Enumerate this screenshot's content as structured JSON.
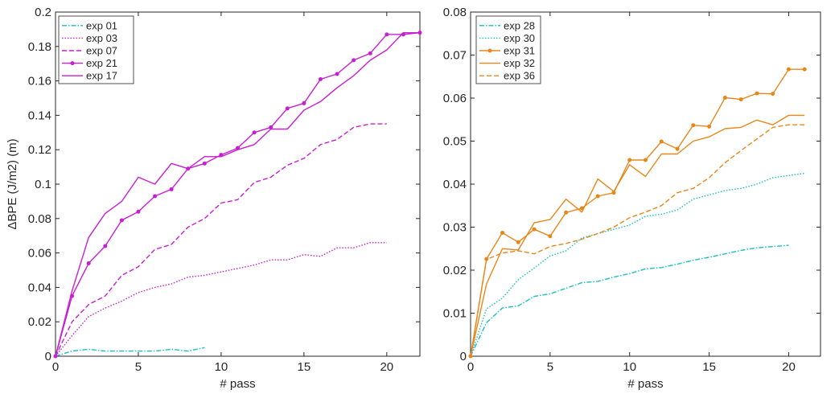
{
  "chart_data": [
    {
      "type": "line",
      "xlabel": "# pass",
      "ylabel": "ΔBPE (J/m2) (m)",
      "xlim": [
        0,
        22
      ],
      "ylim": [
        0,
        0.2
      ],
      "xticks": [
        "0",
        "5",
        "10",
        "15",
        "20"
      ],
      "yticks": [
        "0",
        "0.02",
        "0.04",
        "0.06",
        "0.08",
        "0.1",
        "0.12",
        "0.14",
        "0.16",
        "0.18",
        "0.2"
      ],
      "grid": false,
      "legend_position": "top-left",
      "series": [
        {
          "name": "exp 01",
          "color": "#17bfc0",
          "style": "dashdot",
          "marker": "none",
          "x": [
            0,
            1,
            2,
            3,
            4,
            5,
            6,
            7,
            8,
            9
          ],
          "y": [
            0,
            0.003,
            0.004,
            0.003,
            0.003,
            0.003,
            0.003,
            0.004,
            0.003,
            0.005
          ]
        },
        {
          "name": "exp 03",
          "color": "#c81ed2",
          "style": "dotted",
          "marker": "none",
          "x": [
            0,
            1,
            2,
            3,
            4,
            5,
            6,
            7,
            8,
            9,
            10,
            11,
            12,
            13,
            14,
            15,
            16,
            17,
            18,
            19,
            20
          ],
          "y": [
            0,
            0.012,
            0.023,
            0.028,
            0.032,
            0.037,
            0.04,
            0.042,
            0.046,
            0.047,
            0.049,
            0.051,
            0.053,
            0.056,
            0.056,
            0.059,
            0.058,
            0.063,
            0.063,
            0.066,
            0.066
          ]
        },
        {
          "name": "exp 07",
          "color": "#c81ed2",
          "style": "dashed",
          "marker": "none",
          "x": [
            0,
            1,
            2,
            3,
            4,
            5,
            6,
            7,
            8,
            9,
            10,
            11,
            12,
            13,
            14,
            15,
            16,
            17,
            18,
            19,
            20
          ],
          "y": [
            0,
            0.02,
            0.03,
            0.035,
            0.047,
            0.052,
            0.062,
            0.065,
            0.075,
            0.08,
            0.089,
            0.091,
            0.101,
            0.104,
            0.111,
            0.115,
            0.123,
            0.126,
            0.133,
            0.135,
            0.135
          ]
        },
        {
          "name": "exp 21",
          "color": "#c81ed2",
          "style": "solid",
          "marker": "dot",
          "x": [
            0,
            1,
            2,
            3,
            4,
            5,
            6,
            7,
            8,
            9,
            10,
            11,
            12,
            13,
            14,
            15,
            16,
            17,
            18,
            19,
            20,
            21,
            22
          ],
          "y": [
            0,
            0.035,
            0.054,
            0.064,
            0.079,
            0.084,
            0.093,
            0.097,
            0.109,
            0.112,
            0.117,
            0.121,
            0.13,
            0.133,
            0.144,
            0.147,
            0.161,
            0.164,
            0.172,
            0.176,
            0.187,
            0.187,
            0.188
          ]
        },
        {
          "name": "exp 17",
          "color": "#c81ed2",
          "style": "solid",
          "marker": "none",
          "x": [
            0,
            1,
            2,
            3,
            4,
            5,
            6,
            7,
            8,
            9,
            10,
            11,
            12,
            13,
            14,
            15,
            16,
            17,
            18,
            19,
            20,
            21,
            22
          ],
          "y": [
            0,
            0.038,
            0.069,
            0.083,
            0.09,
            0.104,
            0.1,
            0.112,
            0.109,
            0.116,
            0.116,
            0.12,
            0.123,
            0.132,
            0.132,
            0.143,
            0.148,
            0.156,
            0.163,
            0.172,
            0.178,
            0.188,
            0.188
          ]
        }
      ]
    },
    {
      "type": "line",
      "xlabel": "# pass",
      "ylabel": "",
      "xlim": [
        0,
        22
      ],
      "ylim": [
        0,
        0.08
      ],
      "xticks": [
        "0",
        "5",
        "10",
        "15",
        "20"
      ],
      "yticks": [
        "0",
        "0.01",
        "0.02",
        "0.03",
        "0.04",
        "0.05",
        "0.06",
        "0.07",
        "0.08"
      ],
      "grid": false,
      "legend_position": "top-left",
      "series": [
        {
          "name": "exp 28",
          "color": "#17bfc0",
          "style": "dashdot",
          "marker": "none",
          "x": [
            0,
            1,
            2,
            3,
            4,
            5,
            6,
            7,
            8,
            9,
            10,
            11,
            12,
            13,
            14,
            15,
            16,
            17,
            18,
            19,
            20
          ],
          "y": [
            0,
            0.0078,
            0.0112,
            0.0117,
            0.0139,
            0.0145,
            0.0158,
            0.0171,
            0.0174,
            0.0184,
            0.0192,
            0.0203,
            0.0206,
            0.0214,
            0.0223,
            0.023,
            0.0238,
            0.0246,
            0.0252,
            0.0255,
            0.0258
          ]
        },
        {
          "name": "exp 30",
          "color": "#17bfc0",
          "style": "dotted",
          "marker": "none",
          "x": [
            0,
            1,
            2,
            3,
            4,
            5,
            6,
            7,
            8,
            9,
            10,
            11,
            12,
            13,
            14,
            15,
            16,
            17,
            18,
            19,
            20,
            21
          ],
          "y": [
            0,
            0.011,
            0.0135,
            0.0178,
            0.0205,
            0.0233,
            0.0245,
            0.0275,
            0.0285,
            0.0295,
            0.0305,
            0.0325,
            0.033,
            0.034,
            0.0365,
            0.0375,
            0.0385,
            0.039,
            0.04,
            0.0415,
            0.042,
            0.0425
          ]
        },
        {
          "name": "exp 31",
          "color": "#e8861a",
          "style": "solid",
          "marker": "dot",
          "x": [
            0,
            1,
            2,
            3,
            4,
            5,
            6,
            7,
            8,
            9,
            10,
            11,
            12,
            13,
            14,
            15,
            16,
            17,
            18,
            19,
            20,
            21
          ],
          "y": [
            0,
            0.0226,
            0.0287,
            0.0265,
            0.0295,
            0.0279,
            0.0334,
            0.0344,
            0.0372,
            0.038,
            0.0456,
            0.0456,
            0.0499,
            0.0482,
            0.0537,
            0.0534,
            0.0601,
            0.0597,
            0.0611,
            0.061,
            0.0667,
            0.0667
          ]
        },
        {
          "name": "exp 32",
          "color": "#e8861a",
          "style": "solid",
          "marker": "none",
          "x": [
            0,
            1,
            2,
            3,
            4,
            5,
            6,
            7,
            8,
            9,
            10,
            11,
            12,
            13,
            14,
            15,
            16,
            17,
            18,
            19,
            20,
            21
          ],
          "y": [
            0,
            0.0168,
            0.025,
            0.0247,
            0.031,
            0.0318,
            0.0365,
            0.0335,
            0.0412,
            0.0383,
            0.0445,
            0.0418,
            0.047,
            0.047,
            0.05,
            0.051,
            0.0529,
            0.0532,
            0.0549,
            0.0538,
            0.056,
            0.056
          ]
        },
        {
          "name": "exp 36",
          "color": "#e8861a",
          "style": "dashed",
          "marker": "none",
          "x": [
            0,
            1,
            2,
            3,
            4,
            5,
            6,
            7,
            8,
            9,
            10,
            11,
            12,
            13,
            14,
            15,
            16,
            17,
            18,
            19,
            20,
            21
          ],
          "y": [
            0,
            0.0225,
            0.024,
            0.0245,
            0.0238,
            0.0255,
            0.0262,
            0.0272,
            0.0285,
            0.03,
            0.0322,
            0.0335,
            0.035,
            0.038,
            0.039,
            0.0415,
            0.045,
            0.0478,
            0.0505,
            0.0532,
            0.0538,
            0.0538
          ]
        }
      ]
    }
  ]
}
